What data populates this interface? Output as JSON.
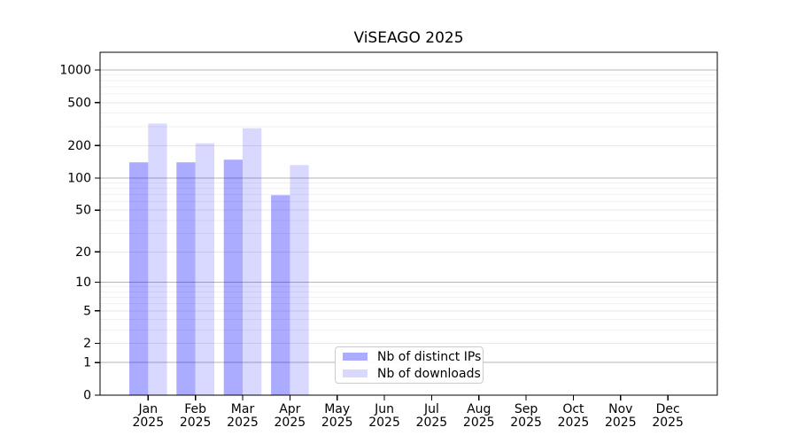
{
  "chart_data": {
    "type": "bar",
    "title": "ViSEAGO 2025",
    "xlabel": "",
    "ylabel": "",
    "months": [
      "Jan",
      "Feb",
      "Mar",
      "Apr",
      "May",
      "Jun",
      "Jul",
      "Aug",
      "Sep",
      "Oct",
      "Nov",
      "Dec"
    ],
    "year_label": "2025",
    "series": [
      {
        "name": "Nb of distinct IPs",
        "values": [
          140,
          140,
          148,
          69,
          0,
          0,
          0,
          0,
          0,
          0,
          0,
          0
        ],
        "fill": "#0000ff",
        "fill_opacity": 0.33
      },
      {
        "name": "Nb of downloads",
        "values": [
          320,
          210,
          290,
          132,
          0,
          0,
          0,
          0,
          0,
          0,
          0,
          0
        ],
        "fill": "#0000ff",
        "fill_opacity": 0.15
      }
    ],
    "yscale": "log10(1+x)",
    "ylim": [
      0,
      1460
    ],
    "yticks": [
      0,
      1,
      2,
      5,
      10,
      20,
      50,
      100,
      200,
      500,
      1000
    ],
    "minor_yticks": [
      3,
      4,
      6,
      7,
      8,
      9,
      30,
      40,
      60,
      70,
      80,
      90,
      300,
      400,
      600,
      700,
      800,
      900
    ],
    "grid": "horizontal",
    "legend_position": "lower-center",
    "colors": {
      "major_gridline": "#b5b5b5",
      "mid_gridline": "#e7e7e7",
      "minor_gridline": "#f1f1f1",
      "axis": "#000000",
      "legend_border": "#cccccc",
      "bar_ips_blended": "#abacf3",
      "bar_downloads_blended": "#d9daf9"
    }
  }
}
